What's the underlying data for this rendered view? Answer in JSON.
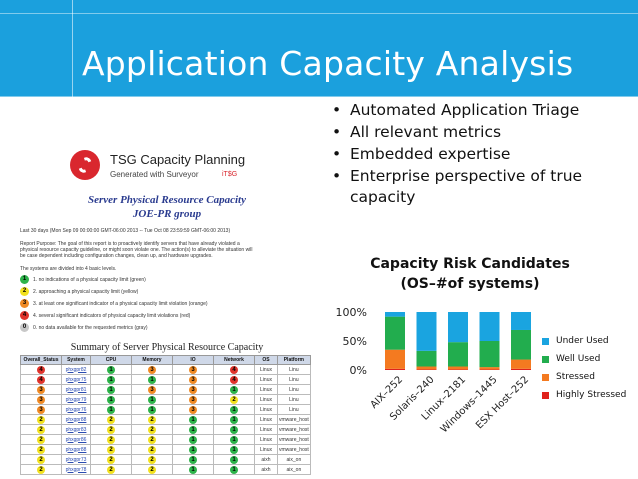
{
  "slide": {
    "title": "Application Capacity Analysis",
    "bullets": [
      "Automated Application Triage",
      "All relevant metrics",
      "Embedded expertise",
      "Enterprise perspective of true capacity"
    ],
    "banner_color": "#1ba0dd"
  },
  "report": {
    "logo_icon": "surveyor-logo-icon",
    "title": "TSG Capacity Planning",
    "subtitle": "Generated with Surveyor",
    "tsg_mark": "iT$G",
    "heading1": "Server Physical Resource Capacity",
    "heading2": "JOE-PR group",
    "period": "Last 30 days (Mon Sep 09 00:00:00 GMT-06:00 2013 -- Tue Oct 08 23:59:59 GMT-06:00 2013)",
    "purpose_lines": [
      "Report Purpose: The goal of this report is to proactively identify servers that have already violated a",
      "physical resource capacity guideline, or might soon violate one. The action(s) to alleviate the situation will",
      "be case dependent including configuration changes, clean up, and hardware upgrades."
    ],
    "levels_intro": "The systems are divided into 4 basic levels.",
    "levels": [
      {
        "num": "1",
        "color": "#2db34a",
        "text": "no indications of a physical capacity limit (green)"
      },
      {
        "num": "2",
        "color": "#f2e11e",
        "text": "approaching a physical capacity limit (yellow)"
      },
      {
        "num": "3",
        "color": "#f08a24",
        "text": "at least one significant indicator of a physical capacity limit violation (orange)"
      },
      {
        "num": "4",
        "color": "#e0342c",
        "text": "several significant indicators of physical capacity limit violations (red)"
      },
      {
        "num": "0",
        "color": "#c8c8c8",
        "text": "no data available for the requested metrics (gray)"
      }
    ],
    "table_title": "Summary of Server Physical Resource Capacity",
    "columns": [
      "Overall_Status",
      "System",
      "CPU",
      "Memory",
      "IO",
      "Network",
      "OS",
      "Platform"
    ],
    "rows": [
      {
        "overall": "4",
        "system": "phxgpr82",
        "cpu": "1",
        "mem": "3",
        "io": "3",
        "net": "4",
        "os": "Linux",
        "plat": "Linu"
      },
      {
        "overall": "4",
        "system": "phxgpr75",
        "cpu": "1",
        "mem": "1",
        "io": "3",
        "net": "4",
        "os": "Linux",
        "plat": "Linu"
      },
      {
        "overall": "3",
        "system": "phxgpr81",
        "cpu": "1",
        "mem": "3",
        "io": "3",
        "net": "1",
        "os": "Linux",
        "plat": "Linu"
      },
      {
        "overall": "3",
        "system": "phxgpr79",
        "cpu": "1",
        "mem": "1",
        "io": "3",
        "net": "2",
        "os": "Linux",
        "plat": "Linu"
      },
      {
        "overall": "3",
        "system": "phxgpr76",
        "cpu": "1",
        "mem": "1",
        "io": "3",
        "net": "1",
        "os": "Linux",
        "plat": "Linu"
      },
      {
        "overall": "2",
        "system": "phxgpr88",
        "cpu": "2",
        "mem": "2",
        "io": "1",
        "net": "1",
        "os": "Linux",
        "plat": "vmware_host"
      },
      {
        "overall": "2",
        "system": "phxgpr83",
        "cpu": "2",
        "mem": "2",
        "io": "1",
        "net": "1",
        "os": "Linux",
        "plat": "vmware_host"
      },
      {
        "overall": "2",
        "system": "phxgpr86",
        "cpu": "2",
        "mem": "2",
        "io": "1",
        "net": "1",
        "os": "Linux",
        "plat": "vmware_host"
      },
      {
        "overall": "2",
        "system": "phxgpr88",
        "cpu": "2",
        "mem": "2",
        "io": "1",
        "net": "1",
        "os": "Linux",
        "plat": "vmware_host"
      },
      {
        "overall": "2",
        "system": "phxgpr73",
        "cpu": "2",
        "mem": "2",
        "io": "1",
        "net": "1",
        "os": "aixh",
        "plat": "aix_on"
      },
      {
        "overall": "2",
        "system": "phxgpr78",
        "cpu": "2",
        "mem": "2",
        "io": "1",
        "net": "1",
        "os": "aixh",
        "plat": "aix_on"
      }
    ]
  },
  "chart_data": {
    "type": "bar",
    "stacked": true,
    "percent": true,
    "title_lines": [
      "Capacity Risk Candidates",
      "(OS–#of systems)"
    ],
    "categories": [
      "AIX–252",
      "Solaris–240",
      "Linux–2181",
      "Windows–1445",
      "ESX Host–252"
    ],
    "series": [
      {
        "name": "Highly Stressed",
        "color": "#e0221c",
        "values": [
          2,
          1,
          1,
          1,
          2
        ]
      },
      {
        "name": "Stressed",
        "color": "#f47a20",
        "values": [
          33,
          5,
          5,
          4,
          16
        ]
      },
      {
        "name": "Well Used",
        "color": "#22ad4e",
        "values": [
          57,
          27,
          42,
          45,
          51
        ]
      },
      {
        "name": "Under Used",
        "color": "#1aa4e0",
        "values": [
          8,
          67,
          52,
          50,
          31
        ]
      }
    ],
    "yticks": [
      "100%",
      "50%",
      "0%"
    ],
    "ylim": [
      0,
      100
    ],
    "legend_position": "right",
    "legend_order": [
      "Under Used",
      "Well Used",
      "Stressed",
      "Highly Stressed"
    ]
  }
}
